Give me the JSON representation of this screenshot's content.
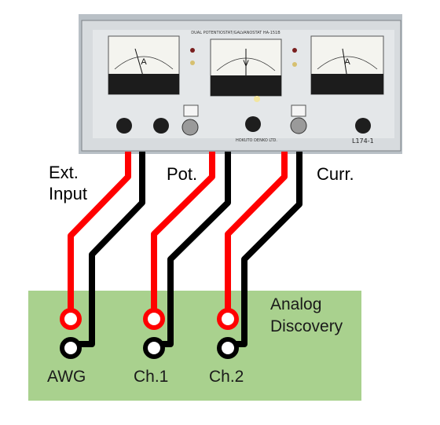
{
  "diagram": {
    "instrument": {
      "meters": [
        {
          "symbol": "A"
        },
        {
          "symbol": "V"
        },
        {
          "symbol": "A"
        }
      ],
      "brand": "HOKUTO DENKO LTD.",
      "model_label": "DUAL POTENTIOSTAT/GALVANOSTAT HA-151B",
      "tag": "L174-1"
    },
    "cable_labels": {
      "ext_input_line1": "Ext.",
      "ext_input_line2": "Input",
      "pot": "Pot.",
      "curr": "Curr."
    },
    "board": {
      "title_line1": "Analog",
      "title_line2": "Discovery",
      "color": "#a9d18e",
      "connectors": [
        {
          "label": "AWG"
        },
        {
          "label": "Ch.1"
        },
        {
          "label": "Ch.2"
        }
      ]
    },
    "colors": {
      "red_wire": "#ff0000",
      "black_wire": "#000000"
    }
  }
}
